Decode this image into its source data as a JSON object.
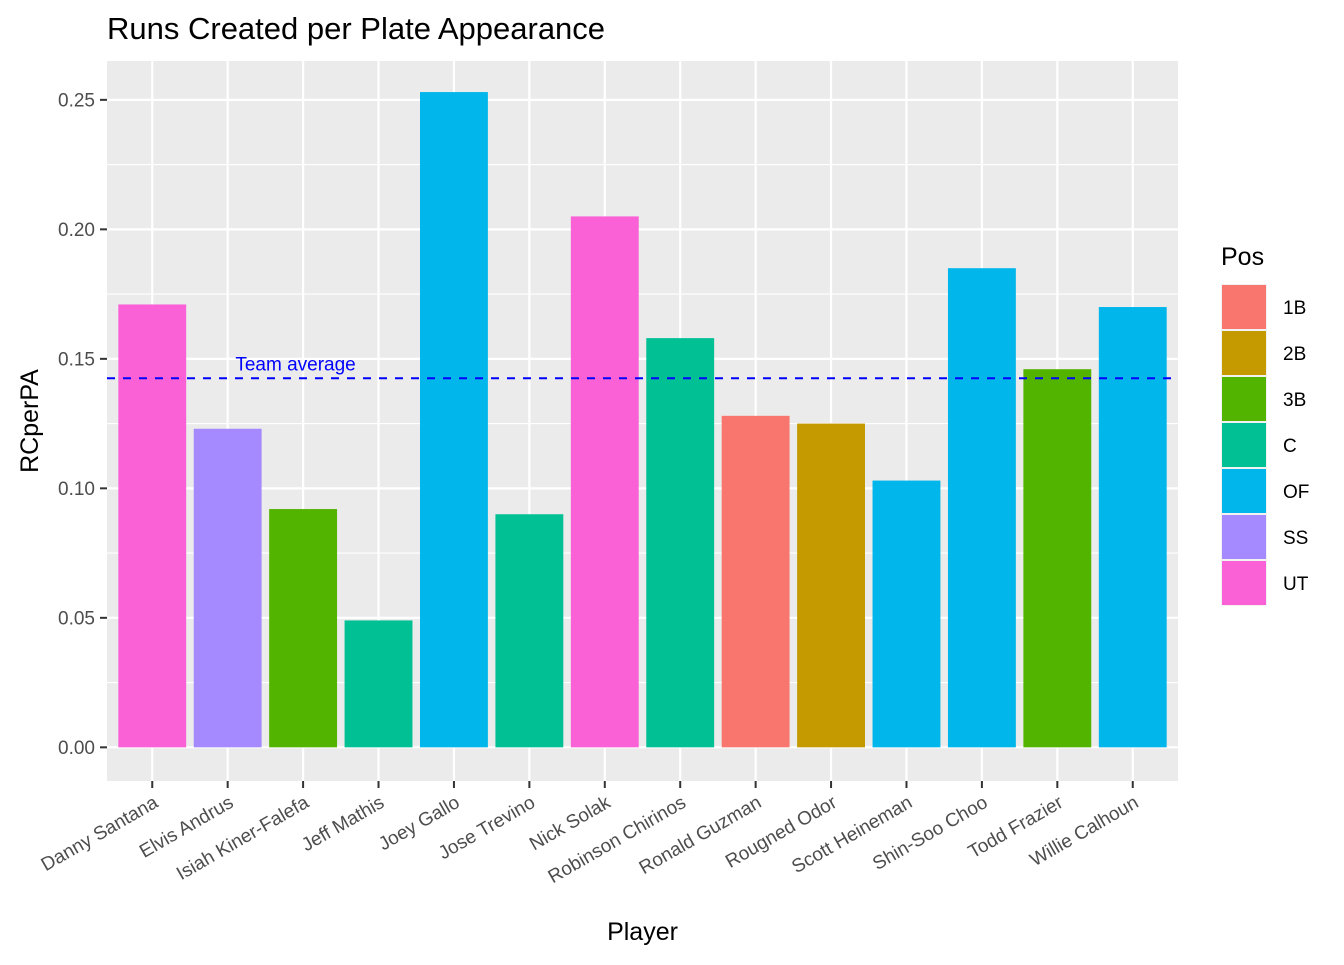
{
  "chart_data": {
    "type": "bar",
    "title": "Runs Created per Plate Appearance",
    "xlabel": "Player",
    "ylabel": "RCperPA",
    "ylim": [
      -0.013,
      0.265
    ],
    "yticks": [
      0.0,
      0.05,
      0.1,
      0.15,
      0.2,
      0.25
    ],
    "ytick_labels": [
      "0.00",
      "0.05",
      "0.10",
      "0.15",
      "0.20",
      "0.25"
    ],
    "grid": true,
    "legend": {
      "title": "Pos",
      "position": "right",
      "entries": [
        {
          "label": "1B",
          "color": "#F8766D"
        },
        {
          "label": "2B",
          "color": "#C49A00"
        },
        {
          "label": "3B",
          "color": "#53B400"
        },
        {
          "label": "C",
          "color": "#00C094"
        },
        {
          "label": "OF",
          "color": "#00B6EB"
        },
        {
          "label": "SS",
          "color": "#A58AFF"
        },
        {
          "label": "UT",
          "color": "#FB61D7"
        }
      ]
    },
    "categories": [
      "Danny Santana",
      "Elvis Andrus",
      "Isiah Kiner-Falefa",
      "Jeff Mathis",
      "Joey Gallo",
      "Jose Trevino",
      "Nick Solak",
      "Robinson Chirinos",
      "Ronald Guzman",
      "Rougned Odor",
      "Scott Heineman",
      "Shin-Soo Choo",
      "Todd Frazier",
      "Willie Calhoun"
    ],
    "values": [
      0.171,
      0.123,
      0.092,
      0.049,
      0.253,
      0.09,
      0.205,
      0.158,
      0.128,
      0.125,
      0.103,
      0.185,
      0.146,
      0.17
    ],
    "positions": [
      "UT",
      "SS",
      "3B",
      "C",
      "OF",
      "C",
      "UT",
      "C",
      "1B",
      "2B",
      "OF",
      "OF",
      "3B",
      "OF"
    ],
    "reference_line": {
      "value": 0.1425,
      "label": "Team average",
      "color": "#0000FF",
      "style": "dashed"
    }
  }
}
